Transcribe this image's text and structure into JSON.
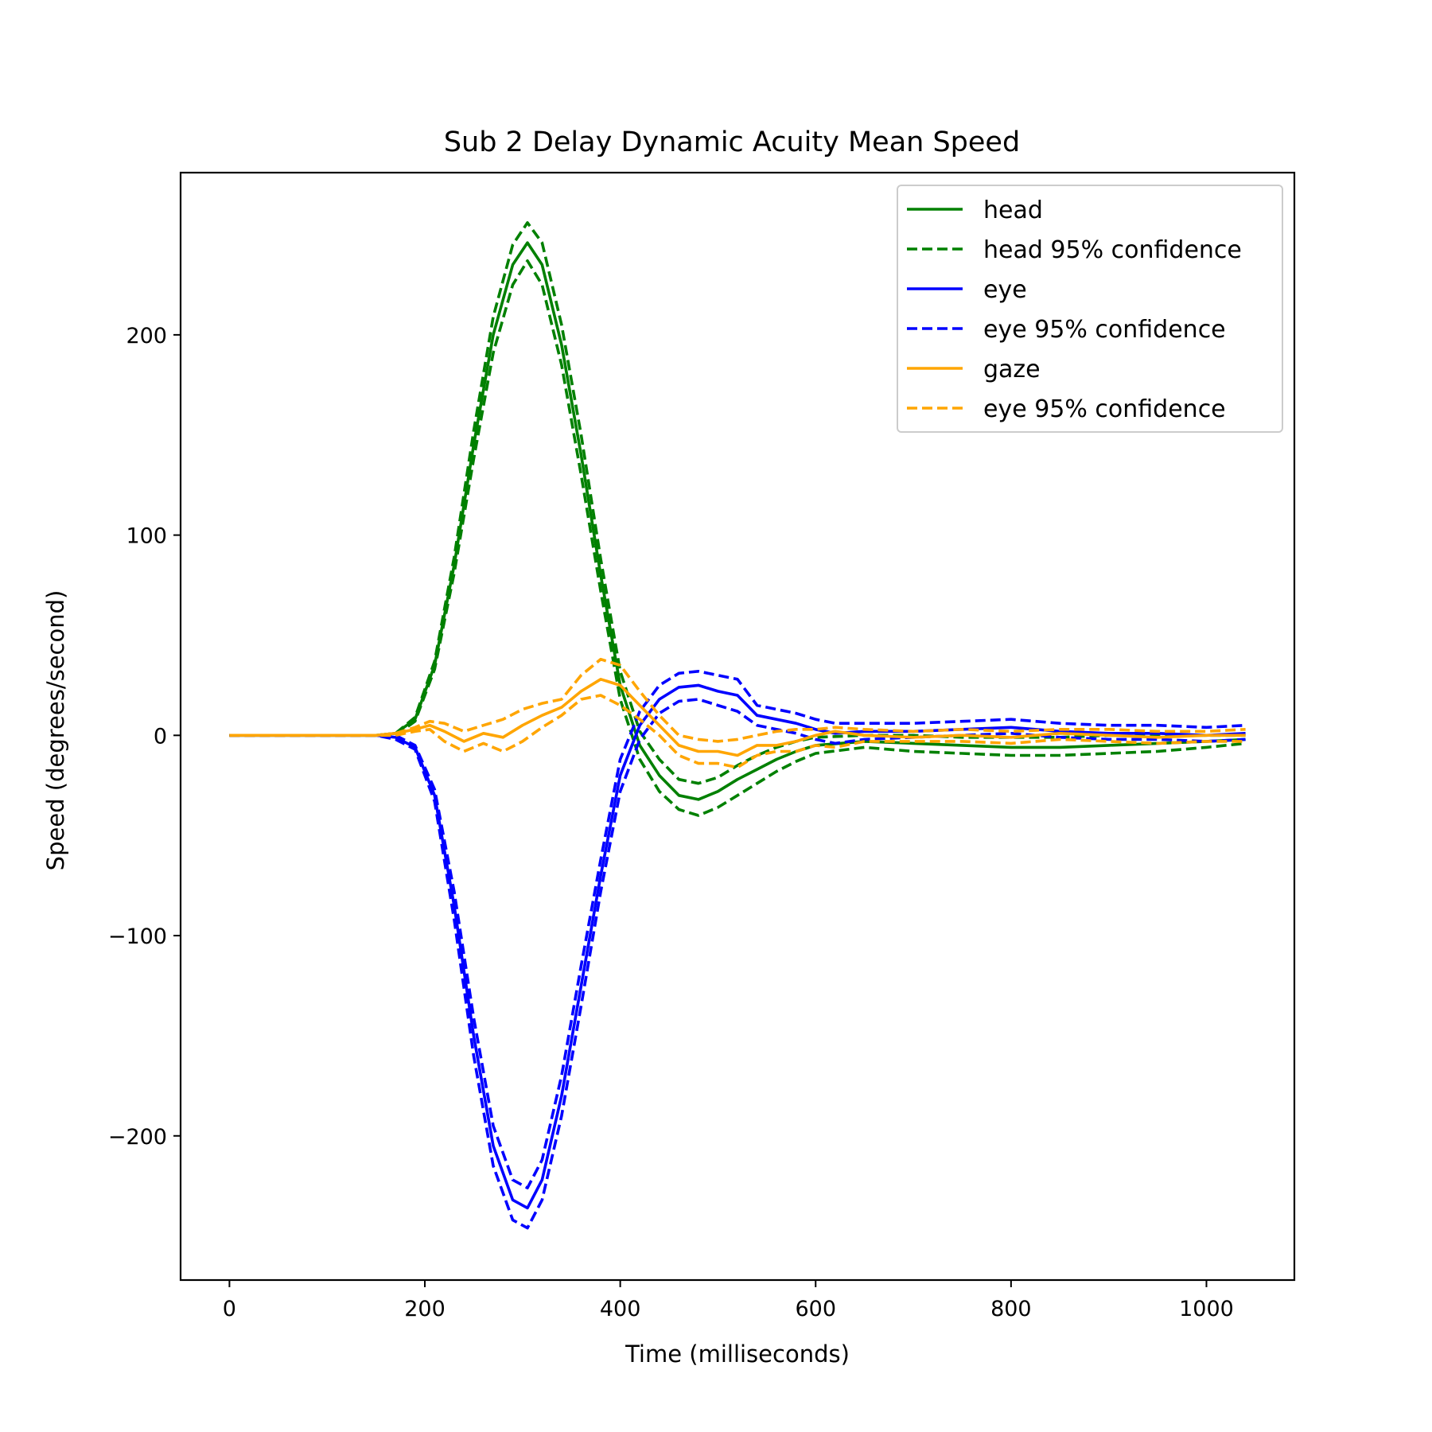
{
  "chart_data": {
    "type": "line",
    "title": "Sub 2 Delay Dynamic Acuity Mean Speed",
    "xlabel": "Time (milliseconds)",
    "ylabel": "Speed (degrees/second)",
    "xlim": [
      -50,
      1090
    ],
    "ylim": [
      -272,
      281
    ],
    "xticks": [
      0,
      200,
      400,
      600,
      800,
      1000
    ],
    "yticks": [
      -200,
      -100,
      0,
      100,
      200
    ],
    "xtick_labels": [
      "0",
      "200",
      "400",
      "600",
      "800",
      "1000"
    ],
    "ytick_labels": [
      "−200",
      "−100",
      "0",
      "100",
      "200"
    ],
    "grid": false,
    "legend_position": "top-right",
    "series": [
      {
        "name": "head",
        "color": "#008000",
        "style": "solid",
        "x": [
          0,
          40,
          80,
          120,
          150,
          170,
          190,
          210,
          230,
          250,
          270,
          290,
          305,
          320,
          340,
          360,
          380,
          400,
          420,
          440,
          460,
          480,
          500,
          520,
          540,
          560,
          580,
          600,
          650,
          700,
          750,
          800,
          850,
          900,
          950,
          1000,
          1040
        ],
        "y": [
          0,
          0,
          0,
          0,
          0,
          1,
          8,
          35,
          85,
          145,
          200,
          235,
          246,
          235,
          195,
          140,
          80,
          25,
          -5,
          -20,
          -30,
          -32,
          -28,
          -22,
          -17,
          -12,
          -8,
          -5,
          -3,
          -4,
          -5,
          -6,
          -6,
          -5,
          -4,
          -3,
          -2
        ]
      },
      {
        "name": "head 95% confidence",
        "color": "#008000",
        "style": "dashed",
        "x": [
          0,
          40,
          80,
          120,
          150,
          170,
          190,
          210,
          230,
          250,
          270,
          290,
          305,
          320,
          340,
          360,
          380,
          400,
          420,
          440,
          460,
          480,
          500,
          520,
          540,
          560,
          580,
          600,
          650,
          700,
          750,
          800,
          850,
          900,
          950,
          1000,
          1040
        ],
        "y": [
          0,
          0,
          0,
          0,
          0,
          1,
          9,
          37,
          89,
          152,
          209,
          245,
          256,
          246,
          205,
          150,
          88,
          32,
          2,
          -12,
          -22,
          -24,
          -21,
          -15,
          -10,
          -6,
          -3,
          -1,
          0,
          0,
          -1,
          -1,
          -1,
          0,
          0,
          0,
          0
        ]
      },
      {
        "name": "head 95% confidence",
        "color": "#008000",
        "style": "dashed",
        "x": [
          0,
          40,
          80,
          120,
          150,
          170,
          190,
          210,
          230,
          250,
          270,
          290,
          305,
          320,
          340,
          360,
          380,
          400,
          420,
          440,
          460,
          480,
          500,
          520,
          540,
          560,
          580,
          600,
          650,
          700,
          750,
          800,
          850,
          900,
          950,
          1000,
          1040
        ],
        "y": [
          0,
          0,
          0,
          0,
          0,
          0,
          7,
          33,
          81,
          138,
          191,
          225,
          237,
          225,
          185,
          130,
          72,
          18,
          -12,
          -28,
          -37,
          -40,
          -36,
          -30,
          -24,
          -18,
          -13,
          -9,
          -6,
          -8,
          -9,
          -10,
          -10,
          -9,
          -8,
          -6,
          -4
        ]
      },
      {
        "name": "eye",
        "color": "#0000ff",
        "style": "solid",
        "x": [
          0,
          40,
          80,
          120,
          150,
          170,
          190,
          210,
          230,
          250,
          270,
          290,
          305,
          320,
          340,
          360,
          380,
          400,
          420,
          440,
          460,
          480,
          500,
          520,
          540,
          560,
          580,
          600,
          620,
          650,
          700,
          750,
          800,
          850,
          900,
          950,
          1000,
          1040
        ],
        "y": [
          0,
          0,
          0,
          0,
          0,
          -1,
          -6,
          -30,
          -85,
          -150,
          -205,
          -232,
          -236,
          -222,
          -180,
          -125,
          -70,
          -20,
          5,
          18,
          24,
          25,
          22,
          20,
          10,
          8,
          6,
          3,
          1,
          2,
          2,
          3,
          4,
          2,
          1,
          1,
          0,
          1
        ]
      },
      {
        "name": "eye 95% confidence",
        "color": "#0000ff",
        "style": "dashed",
        "x": [
          0,
          40,
          80,
          120,
          150,
          170,
          190,
          210,
          230,
          250,
          270,
          290,
          305,
          320,
          340,
          360,
          380,
          400,
          420,
          440,
          460,
          480,
          500,
          520,
          540,
          560,
          580,
          600,
          620,
          650,
          700,
          750,
          800,
          850,
          900,
          950,
          1000,
          1040
        ],
        "y": [
          0,
          0,
          0,
          0,
          0,
          0,
          -5,
          -27,
          -78,
          -141,
          -195,
          -222,
          -226,
          -212,
          -170,
          -115,
          -62,
          -12,
          12,
          25,
          31,
          32,
          30,
          28,
          15,
          13,
          11,
          8,
          6,
          6,
          6,
          7,
          8,
          6,
          5,
          5,
          4,
          5
        ]
      },
      {
        "name": "eye 95% confidence",
        "color": "#0000ff",
        "style": "dashed",
        "x": [
          0,
          40,
          80,
          120,
          150,
          170,
          190,
          210,
          230,
          250,
          270,
          290,
          305,
          320,
          340,
          360,
          380,
          400,
          420,
          440,
          460,
          480,
          500,
          520,
          540,
          560,
          580,
          600,
          620,
          650,
          700,
          750,
          800,
          850,
          900,
          950,
          1000,
          1040
        ],
        "y": [
          0,
          0,
          0,
          0,
          0,
          -2,
          -7,
          -33,
          -92,
          -160,
          -215,
          -242,
          -246,
          -232,
          -190,
          -135,
          -78,
          -28,
          -2,
          11,
          17,
          18,
          15,
          12,
          5,
          3,
          1,
          -2,
          -4,
          -2,
          -1,
          0,
          1,
          -1,
          -2,
          -2,
          -3,
          -2
        ]
      },
      {
        "name": "gaze",
        "color": "#ffa500",
        "style": "solid",
        "x": [
          0,
          40,
          80,
          120,
          150,
          170,
          190,
          205,
          220,
          240,
          260,
          280,
          300,
          320,
          340,
          360,
          380,
          400,
          420,
          440,
          460,
          480,
          500,
          520,
          540,
          560,
          580,
          600,
          620,
          650,
          700,
          750,
          800,
          850,
          900,
          950,
          1000,
          1040
        ],
        "y": [
          0,
          0,
          0,
          0,
          0,
          1,
          3,
          5,
          2,
          -3,
          1,
          -1,
          5,
          10,
          14,
          22,
          28,
          25,
          15,
          5,
          -5,
          -8,
          -8,
          -10,
          -5,
          -5,
          -3,
          0,
          2,
          0,
          -1,
          0,
          -1,
          1,
          0,
          -1,
          0,
          0
        ]
      },
      {
        "name": "eye 95% confidence",
        "color": "#ffa500",
        "style": "dashed",
        "x": [
          0,
          40,
          80,
          120,
          150,
          170,
          190,
          205,
          220,
          240,
          260,
          280,
          300,
          320,
          340,
          360,
          380,
          400,
          420,
          440,
          460,
          480,
          500,
          520,
          540,
          560,
          580,
          600,
          620,
          650,
          700,
          750,
          800,
          850,
          900,
          950,
          1000,
          1040
        ],
        "y": [
          0,
          0,
          0,
          0,
          0,
          1,
          4,
          7,
          6,
          2,
          5,
          8,
          13,
          16,
          18,
          30,
          38,
          35,
          22,
          10,
          0,
          -2,
          -3,
          -2,
          0,
          2,
          3,
          3,
          4,
          3,
          2,
          3,
          2,
          3,
          3,
          2,
          2,
          3
        ]
      },
      {
        "name": "eye 95% confidence",
        "color": "#ffa500",
        "style": "dashed",
        "x": [
          0,
          40,
          80,
          120,
          150,
          170,
          190,
          205,
          220,
          240,
          260,
          280,
          300,
          320,
          340,
          360,
          380,
          400,
          420,
          440,
          460,
          480,
          500,
          520,
          540,
          560,
          580,
          600,
          620,
          650,
          700,
          750,
          800,
          850,
          900,
          950,
          1000,
          1040
        ],
        "y": [
          0,
          0,
          0,
          0,
          0,
          0,
          2,
          3,
          -3,
          -8,
          -4,
          -8,
          -3,
          4,
          10,
          18,
          20,
          15,
          8,
          0,
          -10,
          -14,
          -14,
          -16,
          -10,
          -8,
          -8,
          -5,
          -6,
          -3,
          -3,
          -3,
          -4,
          -2,
          -3,
          -4,
          -3,
          -3
        ]
      }
    ],
    "legend": [
      {
        "label": "head",
        "color": "#008000",
        "style": "solid"
      },
      {
        "label": "head 95% confidence",
        "color": "#008000",
        "style": "dashed"
      },
      {
        "label": "eye",
        "color": "#0000ff",
        "style": "solid"
      },
      {
        "label": "eye 95% confidence",
        "color": "#0000ff",
        "style": "dashed"
      },
      {
        "label": "gaze",
        "color": "#ffa500",
        "style": "solid"
      },
      {
        "label": "eye 95% confidence",
        "color": "#ffa500",
        "style": "dashed"
      }
    ]
  }
}
